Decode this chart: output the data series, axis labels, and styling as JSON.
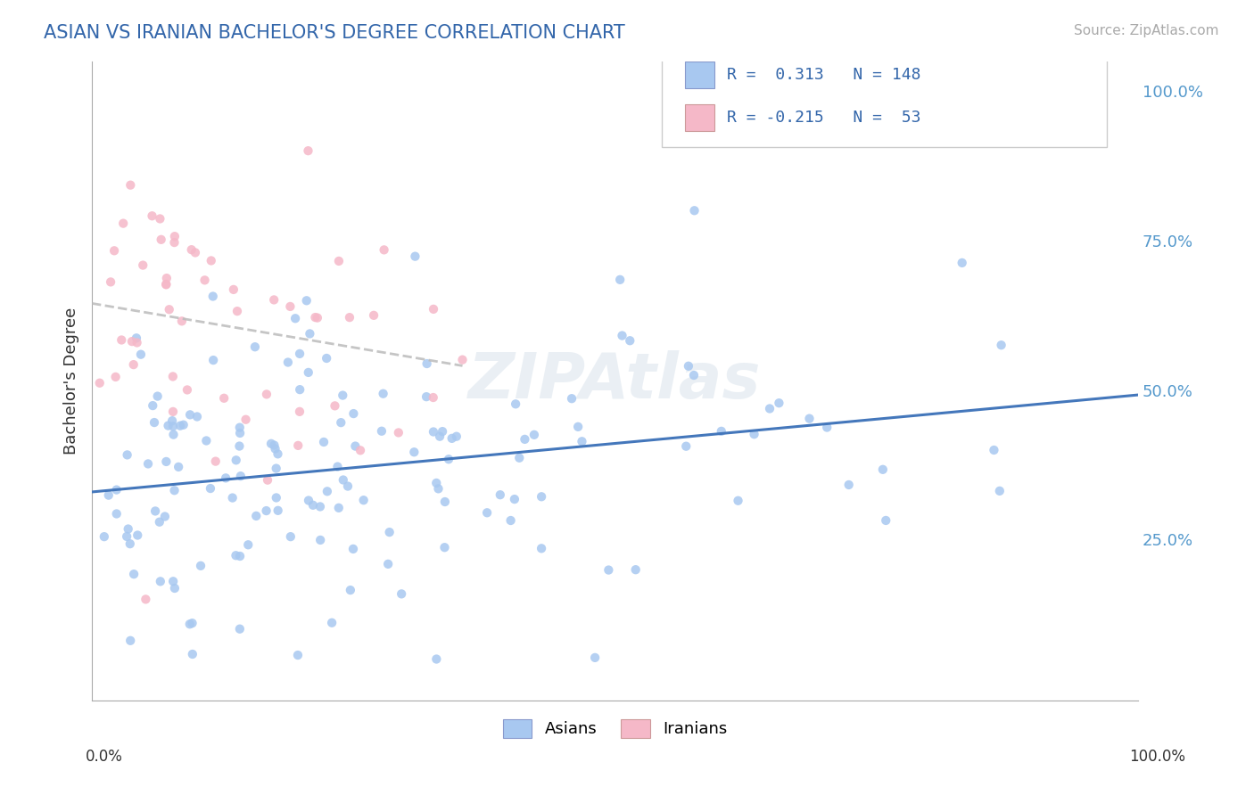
{
  "title": "ASIAN VS IRANIAN BACHELOR'S DEGREE CORRELATION CHART",
  "source": "Source: ZipAtlas.com",
  "ylabel": "Bachelor's Degree",
  "right_yticks": [
    "25.0%",
    "50.0%",
    "75.0%",
    "100.0%"
  ],
  "right_ytick_vals": [
    0.25,
    0.5,
    0.75,
    1.0
  ],
  "asian_color": "#a8c8f0",
  "iranian_color": "#f5b8c8",
  "asian_R": 0.313,
  "asian_N": 148,
  "iranian_R": -0.215,
  "iranian_N": 53,
  "asian_line_color": "#4477bb",
  "iranian_line_color": "#bbbbbb",
  "watermark": "ZIPAtlas",
  "background_color": "#ffffff",
  "grid_color": "#dddddd",
  "seed": 42,
  "xlim": [
    0.0,
    1.0
  ],
  "ylim": [
    0.0,
    1.0
  ]
}
